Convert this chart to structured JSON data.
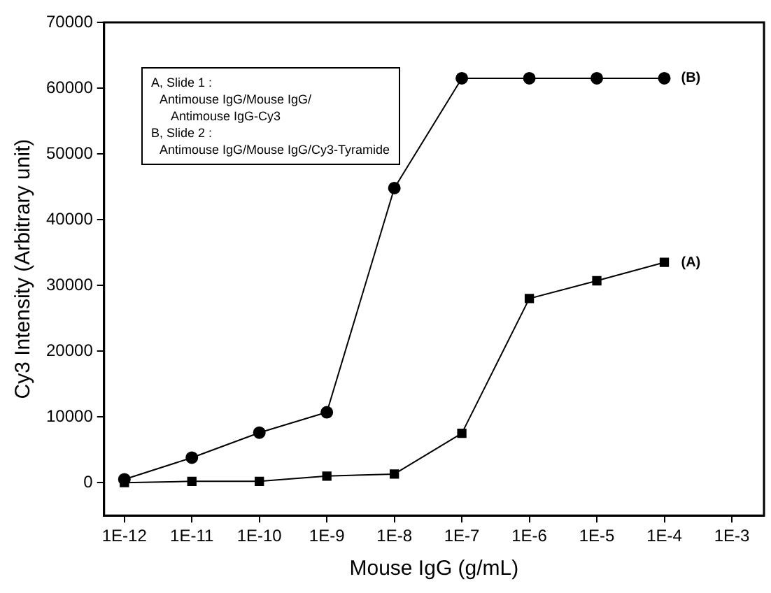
{
  "chart_data": {
    "type": "line",
    "xlabel": "Mouse IgG (g/mL)",
    "ylabel": "Cy3 Intensity (Arbitrary unit)",
    "x": [
      1e-12,
      1e-11,
      1e-10,
      1e-09,
      1e-08,
      1e-07,
      1e-06,
      1e-05,
      0.0001
    ],
    "series": [
      {
        "name": "(B)",
        "color": "#000000",
        "marker": "circle",
        "values": [
          500,
          3800,
          7600,
          10700,
          44800,
          61500,
          61500,
          61500,
          61500
        ]
      },
      {
        "name": "(A)",
        "color": "#000000",
        "marker": "square",
        "values": [
          0,
          200,
          200,
          1000,
          1300,
          7500,
          28000,
          30700,
          33500
        ]
      }
    ],
    "log": "x",
    "xlim": [
      5e-13,
      0.003
    ],
    "xticks": [
      {
        "value": 1e-12,
        "label": "1E-12"
      },
      {
        "value": 1e-11,
        "label": "1E-11"
      },
      {
        "value": 1e-10,
        "label": "1E-10"
      },
      {
        "value": 1e-09,
        "label": "1E-9"
      },
      {
        "value": 1e-08,
        "label": "1E-8"
      },
      {
        "value": 1e-07,
        "label": "1E-7"
      },
      {
        "value": 1e-06,
        "label": "1E-6"
      },
      {
        "value": 1e-05,
        "label": "1E-5"
      },
      {
        "value": 0.0001,
        "label": "1E-4"
      },
      {
        "value": 0.001,
        "label": "1E-3"
      }
    ],
    "ylim": [
      -5000,
      70000
    ],
    "yticks": [
      0,
      10000,
      20000,
      30000,
      40000,
      50000,
      60000,
      70000
    ],
    "grid": false,
    "legend": false,
    "line_style": "solid",
    "annotations": [
      "A, Slide 1 :",
      "Antimouse IgG/Mouse IgG/",
      "Antimouse IgG-Cy3",
      "B, Slide 2 :",
      "Antimouse IgG/Mouse IgG/Cy3-Tyramide"
    ]
  }
}
